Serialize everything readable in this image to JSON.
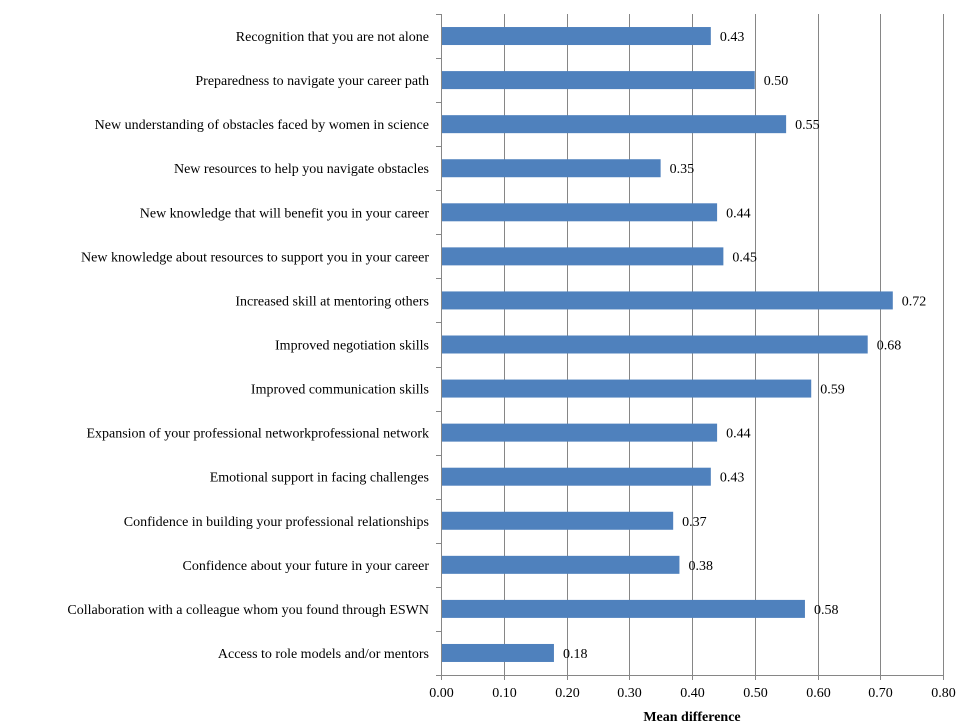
{
  "chart_data": {
    "type": "bar",
    "orientation": "horizontal",
    "categories": [
      "Recognition that you are not alone",
      "Preparedness to navigate your career path",
      "New understanding of obstacles faced by women in science",
      "New resources to help you navigate obstacles",
      "New knowledge that will benefit you in your career",
      "New knowledge about resources to support you in your career",
      "Increased skill at mentoring others",
      "Improved negotiation skills",
      "Improved communication skills",
      "Expansion of your professional networkprofessional network",
      "Emotional support in facing challenges",
      "Confidence in building your professional relationships",
      "Confidence about your future in your career",
      "Collaboration with a colleague whom you found through ESWN",
      "Access to role models and/or mentors"
    ],
    "values": [
      0.43,
      0.5,
      0.55,
      0.35,
      0.44,
      0.45,
      0.72,
      0.68,
      0.59,
      0.44,
      0.43,
      0.37,
      0.38,
      0.58,
      0.18
    ],
    "data_labels": [
      "0.43",
      "0.50",
      "0.55",
      "0.35",
      "0.44",
      "0.45",
      "0.72",
      "0.68",
      "0.59",
      "0.44",
      "0.43",
      "0.37",
      "0.38",
      "0.58",
      "0.18"
    ],
    "xticks": [
      "0.00",
      "0.10",
      "0.20",
      "0.30",
      "0.40",
      "0.50",
      "0.60",
      "0.70",
      "0.80"
    ],
    "xlim": [
      0,
      0.8
    ],
    "xlabel": "Mean difference",
    "ylabel": "",
    "title": "",
    "grid": "vertical",
    "legend": "none",
    "bar_color": "#4F81BD"
  }
}
